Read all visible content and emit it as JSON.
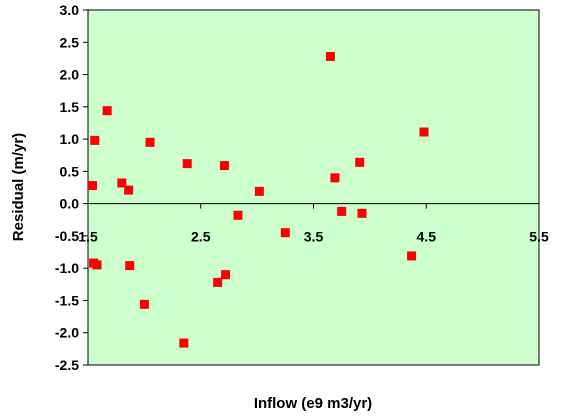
{
  "chart_data": {
    "type": "scatter",
    "title": "",
    "xlabel": "Inflow (e9 m3/yr)",
    "ylabel": "Residual (m/yr)",
    "xlim": [
      1.5,
      5.5
    ],
    "ylim": [
      -2.5,
      3.0
    ],
    "x_ticks": [
      1.5,
      2.5,
      3.5,
      4.5,
      5.5
    ],
    "y_ticks": [
      3.0,
      2.5,
      2.0,
      1.5,
      1.0,
      0.5,
      0.0,
      -0.5,
      -1.0,
      -1.5,
      -2.0,
      -2.5
    ],
    "x_tick_labels": [
      "1.5",
      "2.5",
      "3.5",
      "4.5",
      "5.5"
    ],
    "y_tick_labels": [
      "3.0",
      "2.5",
      "2.0",
      "1.5",
      "1.0",
      "0.5",
      "0.0",
      "-0.5",
      "-1.0",
      "-1.5",
      "-2.0",
      "-2.5"
    ],
    "grid": false,
    "legend": "none",
    "colors": {
      "plot_background": "#ccffcc",
      "marker": "#ff0000",
      "axis": "#000000"
    },
    "series": [
      {
        "x": [
          1.54,
          1.56,
          1.67,
          1.8,
          1.86,
          2.05,
          2.38,
          2.71,
          3.02,
          3.65,
          3.69,
          3.91,
          4.48,
          1.55,
          1.58,
          1.87,
          2.0,
          2.35,
          2.65,
          2.72,
          2.83,
          3.25,
          3.75,
          3.93,
          4.37
        ],
        "y": [
          0.28,
          0.98,
          1.44,
          0.32,
          0.21,
          0.95,
          0.62,
          0.59,
          0.19,
          2.28,
          0.4,
          0.64,
          1.11,
          -0.92,
          -0.95,
          -0.96,
          -1.56,
          -2.16,
          -1.22,
          -1.1,
          -0.18,
          -0.45,
          -0.12,
          -0.15,
          -0.81
        ]
      }
    ]
  }
}
